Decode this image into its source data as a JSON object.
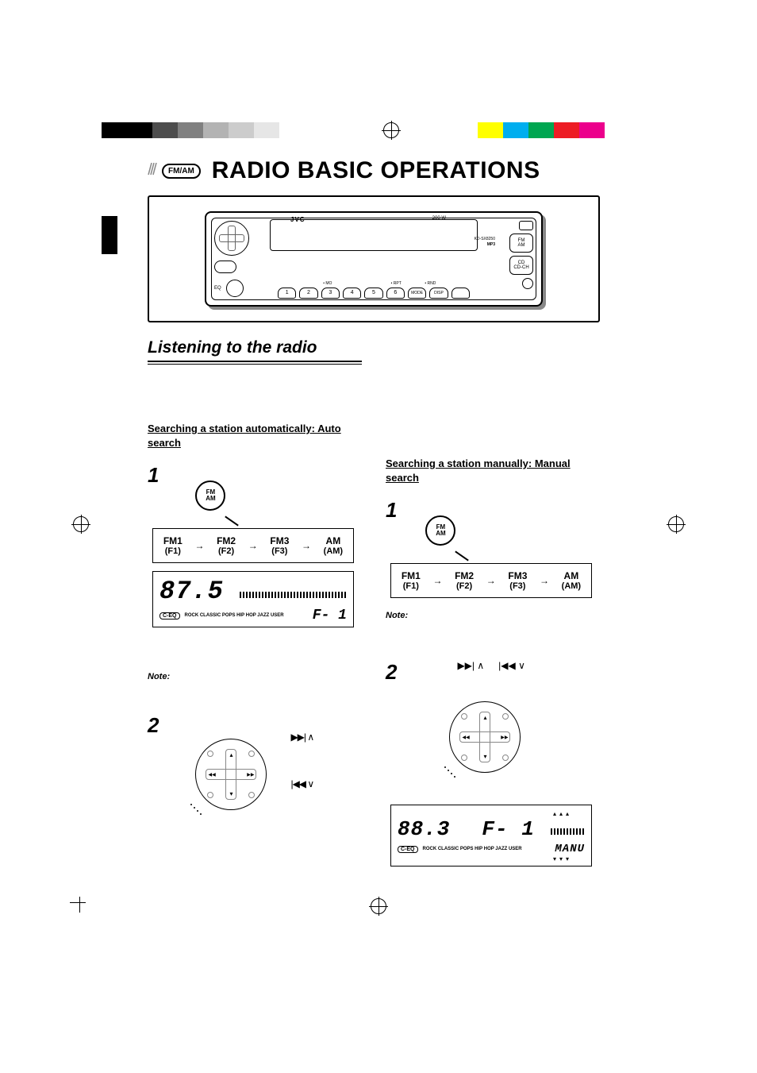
{
  "reg_colors_left": [
    "#000000",
    "#000000",
    "#4d4d4d",
    "#808080",
    "#b3b3b3",
    "#cccccc",
    "#e6e6e6",
    "#ffffff"
  ],
  "reg_colors_right": [
    "#ffff00",
    "#00aeef",
    "#00a651",
    "#ed1c24",
    "#ec008c",
    "#ffffff",
    "#ffffff"
  ],
  "badge": {
    "text": "FM/AM"
  },
  "title": "RADIO BASIC OPERATIONS",
  "stereo": {
    "brand": "JVC",
    "watt": "200 W",
    "model": "KD-SX8250",
    "mp3": "MP3",
    "num_buttons": [
      "1",
      "2",
      "3",
      "4",
      "5",
      "6"
    ],
    "extra_buttons": [
      "MODE",
      "DISP",
      ""
    ],
    "preset_labels": [
      "",
      "MO",
      "",
      "RPT",
      "RND"
    ],
    "right_btn1": "FM\nAM",
    "right_btn2": "CD\nCD-CH"
  },
  "h2": "Listening to the radio",
  "auto": {
    "heading": "Searching a station automatically: Auto search",
    "step1_num": "1",
    "fmam_btn": "FM\nAM",
    "bands": [
      {
        "b": "FM1",
        "s": "(F1)"
      },
      {
        "b": "FM2",
        "s": "(F2)"
      },
      {
        "b": "FM3",
        "s": "(F3)"
      },
      {
        "b": "AM",
        "s": "(AM)"
      }
    ],
    "lcd_freq": "87.5",
    "lcd_band": "F- 1",
    "eq_labels": [
      "ROCK",
      "CLASSIC",
      "POPS",
      "HIP HOP",
      "JAZZ",
      "USER"
    ],
    "ceq": "C-EQ",
    "note": "Note:",
    "step2_num": "2",
    "seek_fwd": "▶▶| ∧",
    "seek_back": "|◀◀ ∨"
  },
  "manual": {
    "heading": "Searching a station manually: Manual search",
    "step1_num": "1",
    "fmam_btn": "FM\nAM",
    "bands": [
      {
        "b": "FM1",
        "s": "(F1)"
      },
      {
        "b": "FM2",
        "s": "(F2)"
      },
      {
        "b": "FM3",
        "s": "(F3)"
      },
      {
        "b": "AM",
        "s": "(AM)"
      }
    ],
    "note": "Note:",
    "step2_num": "2",
    "seek_fwd": "▶▶| ∧",
    "seek_back": "|◀◀ ∨",
    "lcd_freq": "88.3",
    "lcd_band": "F- 1",
    "manu": "MANU",
    "eq_labels": [
      "ROCK",
      "CLASSIC",
      "POPS",
      "HIP HOP",
      "JAZZ",
      "USER"
    ],
    "ceq": "C-EQ"
  },
  "colors": {
    "text": "#000000",
    "bg": "#ffffff"
  }
}
